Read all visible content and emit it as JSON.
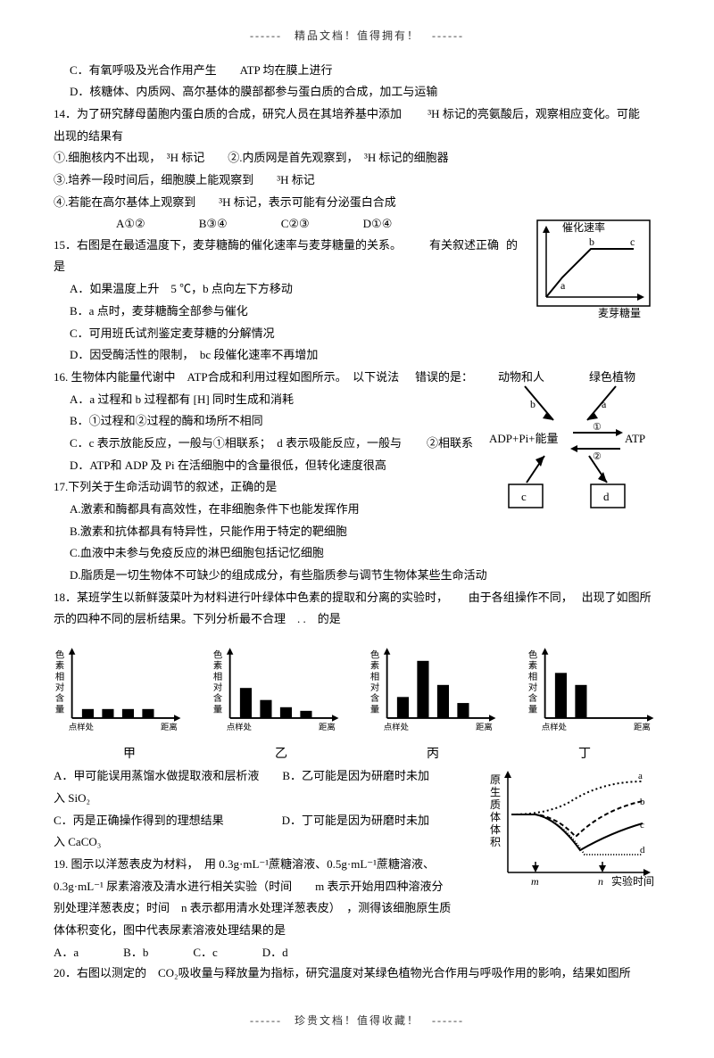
{
  "header": "------　精品文档！值得拥有！　------",
  "footer": "------　珍贵文档！值得收藏！　------",
  "q13C": "C．有氧呼吸及光合作用产生　　ATP 均在膜上进行",
  "q13D": "D．核糖体、内质网、高尔基体的膜部都参与蛋白质的合成，加工与运输",
  "q14": {
    "stem": "14．为了研究酵母菌胞内蛋白质的合成，研究人员在其培养基中添加",
    "stem2": "³H 标记的亮氨酸后，观察相应变化。可能",
    "stem3": "出现的结果有",
    "l1": "①.细胞核内不出现，　³H 标记　　②.内质网是首先观察到，　³H 标记的细胞器",
    "l2": "③.培养一段时间后，细胞膜上能观察到　　³H 标记",
    "l3": "④.若能在高尔基体上观察到　　³H 标记，表示可能有分泌蛋白合成",
    "opts": {
      "a": "A①②",
      "b": "B③④",
      "c": "C②③",
      "d": "D①④"
    }
  },
  "q15": {
    "stem1": "15．右图是在最适温度下，麦芽糖酶的催化速率与麦芽糖量的关系。",
    "stem_right": "有关叙述正确",
    "stem_end": "的",
    "stem2": "是",
    "a": "A．如果温度上升　5 ℃，b 点向左下方移动",
    "b": "B．a 点时，麦芽糖酶全部参与催化",
    "c": "C．可用班氏试剂鉴定麦芽糖的分解情况",
    "d": "D．因受酶活性的限制，　bc 段催化速率不再增加",
    "chart": {
      "ylabel": "催化速率",
      "xlabel": "麦芽糖量",
      "pts": [
        "a",
        "b",
        "c"
      ]
    }
  },
  "q16": {
    "stem": "16. 生物体内能量代谢中　ATP合成和利用过程如图所示。　以下说法",
    "stem_end": "错误的是：",
    "a": "A．a 过程和 b 过程都有 [H] 同时生成和消耗",
    "b": "B．①过程和②过程的酶和场所不相同",
    "c1": "C．c 表示放能反应，一般与①相联系；　d 表示吸能反应，一般与",
    "c2": "②相联系",
    "d": "D．ATP和 ADP 及 Pi 在活细胞中的含量很低，但转化速度很高",
    "diagram": {
      "top1": "动物和人",
      "top2": "绿色植物",
      "mid": "ADP+Pi+能量",
      "right": "ATP",
      "bot1": "c",
      "bot2": "d",
      "lbl1": "①",
      "lbl2": "②",
      "lbla": "a",
      "lblb": "b"
    }
  },
  "q17": {
    "stem": "17.下列关于生命活动调节的叙述，正确的是",
    "a": "A.激素和酶都具有高效性，在非细胞条件下也能发挥作用",
    "b": "B.激素和抗体都具有特异性，只能作用于特定的靶细胞",
    "c": "C.血液中未参与免疫反应的淋巴细胞包括记忆细胞",
    "d": "D.脂质是一切生物体不可缺少的组成成分，有些脂质参与调节生物体某些生命活动"
  },
  "q18": {
    "stem1": "18．某班学生以新鲜菠菜叶为材料进行叶绿体中色素的提取和分离的实验时，",
    "stem2": "由于各组操作不同，",
    "stem3": "出现了如图所",
    "stem4": "示的四种不同的层析结果。下列分析最不合理　. .　的是",
    "ylabel": "色素相对含量",
    "xstart": "点样处",
    "xend": "距离",
    "labels": [
      "甲",
      "乙",
      "丙",
      "丁"
    ],
    "charts": {
      "a": [
        0.15,
        0.15,
        0.15,
        0.15
      ],
      "b": [
        0.5,
        0.3,
        0.18,
        0.12
      ],
      "c": [
        0.35,
        0.95,
        0.55,
        0.25
      ],
      "d": [
        0.75,
        0.55,
        0.0,
        0.0
      ]
    },
    "optA": "A．甲可能误用蒸馏水做提取液和层析液　　B．乙可能是因为研磨时未加",
    "optA2": "入 SiO₂",
    "optC": "C．丙是正确操作得到的理想结果　　　　　D．丁可能是因为研磨时未加",
    "optC2": "入 CaCO₃"
  },
  "q19": {
    "stem1": "19. 图示以洋葱表皮为材料，　用 0.3g·mL⁻¹蔗糖溶液、0.5g·mL⁻¹蔗糖溶液、",
    "stem2": "0.3g·mL⁻¹ 尿素溶液及清水进行相关实验（时间　　m 表示开始用四种溶液分",
    "stem3": "别处理洋葱表皮；时间　n 表示都用清水处理洋葱表皮）　，测得该细胞原生质",
    "stem4": "体体积变化，图中代表尿素溶液处理结果的是",
    "opts": {
      "a": "A．a",
      "b": "B．b",
      "c": "C．c",
      "d": "D．d"
    },
    "chart": {
      "ylabel": "原生质体体积",
      "xlabel": "实验时间",
      "m": "m",
      "n": "n",
      "curves": [
        "a",
        "b",
        "c",
        "d"
      ]
    }
  },
  "q20": {
    "stem": "20．右图以测定的　CO₂吸收量与释放量为指标，研究温度对某绿色植物光合作用与呼吸作用的影响，结果如图所"
  }
}
